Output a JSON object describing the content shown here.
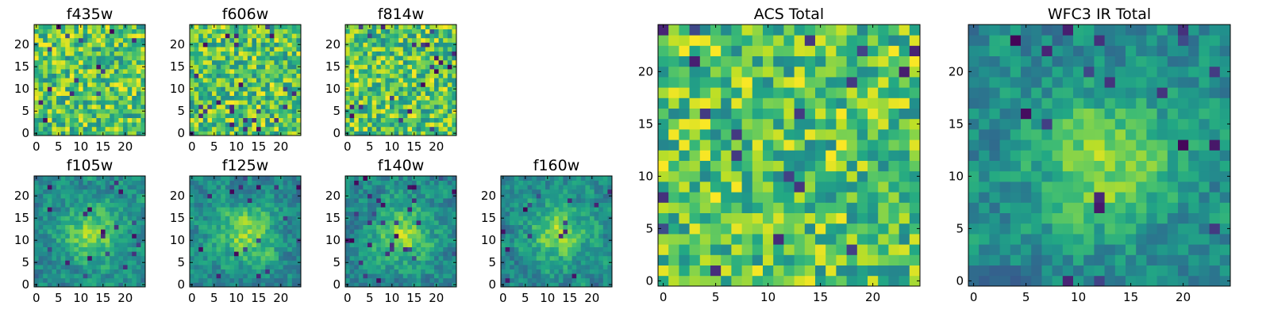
{
  "chart_data": [
    {
      "type": "heatmap",
      "title": "f435w",
      "colormap": "viridis",
      "grid_size": 25,
      "xticks": [
        0,
        5,
        10,
        15,
        20
      ],
      "yticks": [
        0,
        5,
        10,
        15,
        20
      ],
      "seed": 11
    },
    {
      "type": "heatmap",
      "title": "f606w",
      "colormap": "viridis",
      "grid_size": 25,
      "xticks": [
        0,
        5,
        10,
        15,
        20
      ],
      "yticks": [
        0,
        5,
        10,
        15,
        20
      ],
      "seed": 23
    },
    {
      "type": "heatmap",
      "title": "f814w",
      "colormap": "viridis",
      "grid_size": 25,
      "xticks": [
        0,
        5,
        10,
        15,
        20
      ],
      "yticks": [
        0,
        5,
        10,
        15,
        20
      ],
      "seed": 37
    },
    {
      "type": "heatmap",
      "title": "f105w",
      "colormap": "viridis",
      "grid_size": 25,
      "xticks": [
        0,
        5,
        10,
        15,
        20
      ],
      "yticks": [
        0,
        5,
        10,
        15,
        20
      ],
      "seed": 41
    },
    {
      "type": "heatmap",
      "title": "f125w",
      "colormap": "viridis",
      "grid_size": 25,
      "xticks": [
        0,
        5,
        10,
        15,
        20
      ],
      "yticks": [
        0,
        5,
        10,
        15,
        20
      ],
      "seed": 53
    },
    {
      "type": "heatmap",
      "title": "f140w",
      "colormap": "viridis",
      "grid_size": 25,
      "xticks": [
        0,
        5,
        10,
        15,
        20
      ],
      "yticks": [
        0,
        5,
        10,
        15,
        20
      ],
      "seed": 67
    },
    {
      "type": "heatmap",
      "title": "f160w",
      "colormap": "viridis",
      "grid_size": 25,
      "xticks": [
        0,
        5,
        10,
        15,
        20
      ],
      "yticks": [
        0,
        5,
        10,
        15,
        20
      ],
      "seed": 79
    },
    {
      "type": "heatmap",
      "title": "ACS Total",
      "colormap": "viridis",
      "grid_size": 25,
      "xticks": [
        0,
        5,
        10,
        15,
        20
      ],
      "yticks": [
        0,
        5,
        10,
        15,
        20
      ],
      "seed": 83
    },
    {
      "type": "heatmap",
      "title": "WFC3 IR Total",
      "colormap": "viridis",
      "grid_size": 25,
      "xticks": [
        0,
        5,
        10,
        15,
        20
      ],
      "yticks": [
        0,
        5,
        10,
        15,
        20
      ],
      "seed": 97
    }
  ]
}
